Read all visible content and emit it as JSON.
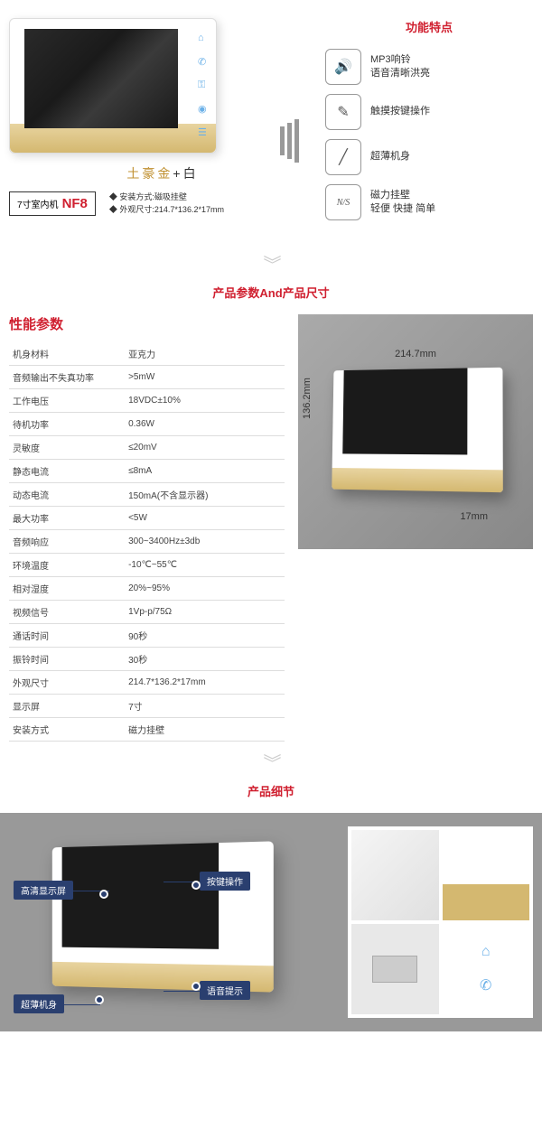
{
  "section1": {
    "color_label_gold": "土豪金",
    "color_label_plus": "+",
    "color_label_white": "白",
    "model_prefix": "7寸室内机",
    "model_code": "NF8",
    "spec_line1": "◆ 安装方式:磁吸挂壁",
    "spec_line2": "◆ 外观尺寸:214.7*136.2*17mm"
  },
  "features": {
    "title": "功能特点",
    "items": [
      {
        "icon": "🔊",
        "text1": "MP3响铃",
        "text2": "语音清晰洪亮"
      },
      {
        "icon": "✎",
        "text1": "触摸按键操作",
        "text2": ""
      },
      {
        "icon": "╱",
        "text1": "超薄机身",
        "text2": ""
      },
      {
        "icon": "N/S",
        "text1": "磁力挂壁",
        "text2": "轻便 快捷 简单"
      }
    ]
  },
  "section2_title": "产品参数And产品尺寸",
  "specs": {
    "title": "性能参数",
    "rows": [
      [
        "机身材料",
        "亚克力"
      ],
      [
        "音频输出不失真功率",
        ">5mW"
      ],
      [
        "工作电压",
        "18VDC±10%"
      ],
      [
        "待机功率",
        "0.36W"
      ],
      [
        "灵敏度",
        "≤20mV"
      ],
      [
        "静态电流",
        "≤8mA"
      ],
      [
        "动态电流",
        "150mA(不含显示器)"
      ],
      [
        "最大功率",
        "<5W"
      ],
      [
        "音频响应",
        "300~3400Hz±3db"
      ],
      [
        "环境温度",
        "-10℃~55℃"
      ],
      [
        "相对湿度",
        "20%~95%"
      ],
      [
        "视频信号",
        "1Vp-p/75Ω"
      ],
      [
        "通话时间",
        "90秒"
      ],
      [
        "振铃时间",
        "30秒"
      ],
      [
        "外观尺寸",
        "214.7*136.2*17mm"
      ],
      [
        "显示屏",
        "7寸"
      ],
      [
        "安装方式",
        "磁力挂壁"
      ]
    ]
  },
  "dimensions": {
    "width": "214.7mm",
    "height": "136.2mm",
    "depth": "17mm"
  },
  "section3_title": "产品细节",
  "callouts": {
    "c1": "高清显示屏",
    "c2": "超薄机身",
    "c3": "按键操作",
    "c4": "语音提示"
  }
}
